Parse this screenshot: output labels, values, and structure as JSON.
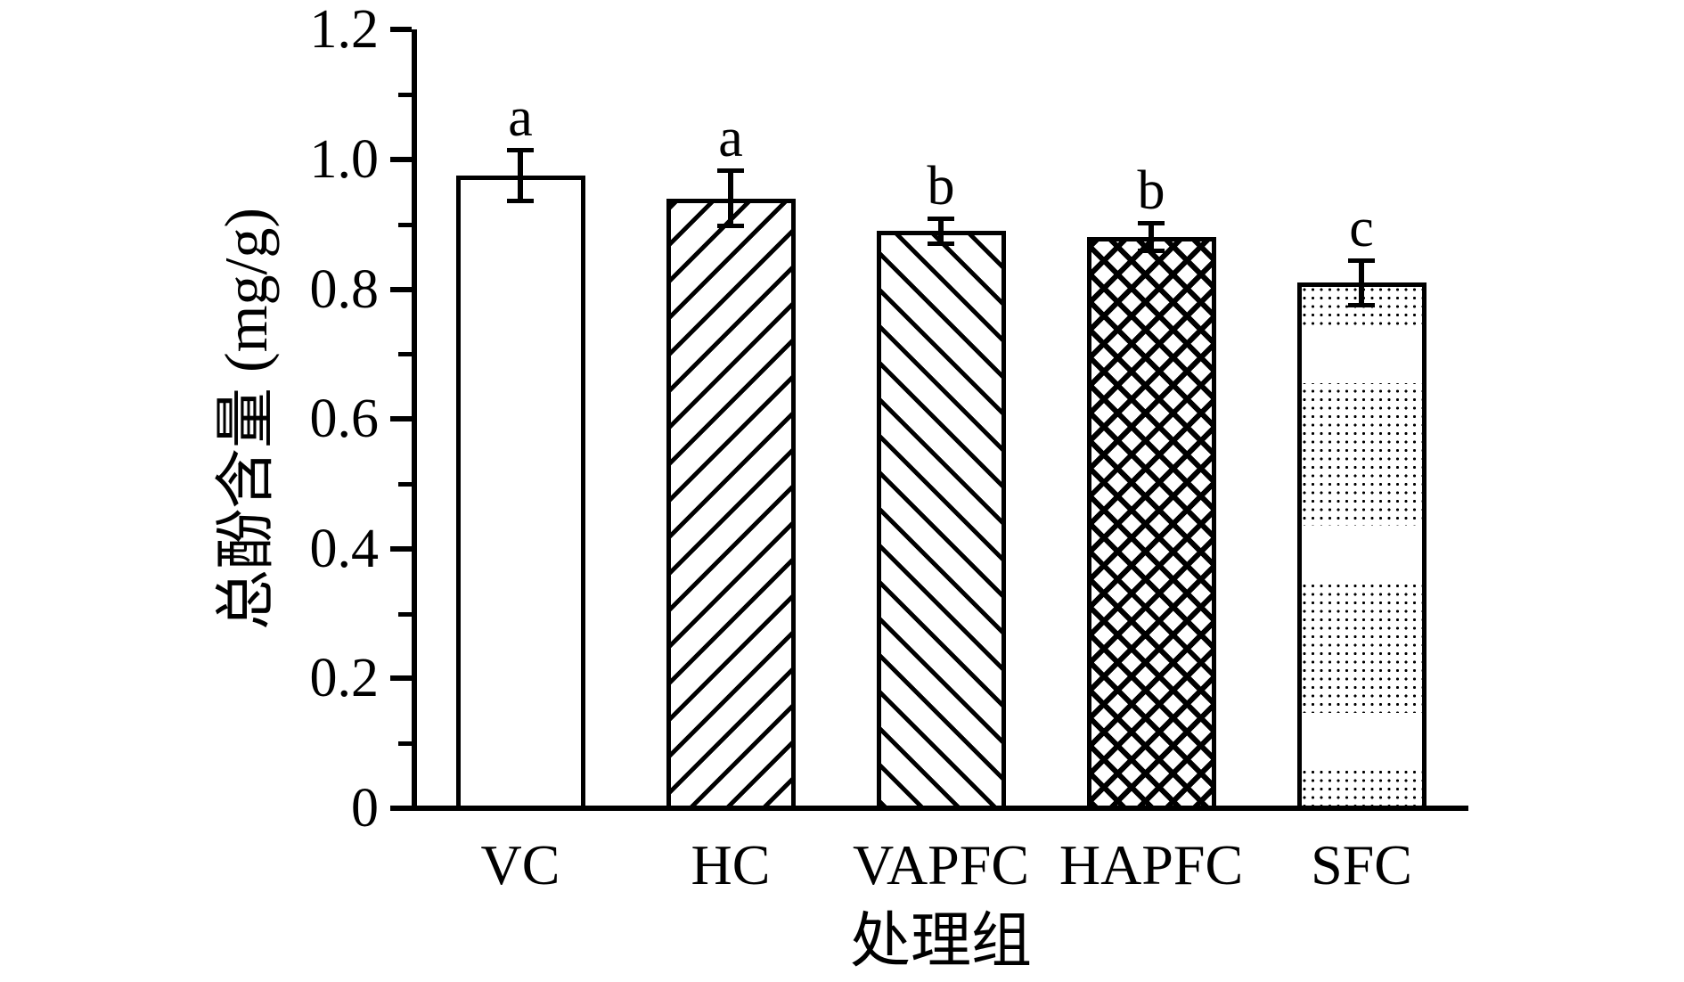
{
  "figure": {
    "background_color": "#ffffff",
    "ink_color": "#000000"
  },
  "chart_data": {
    "type": "bar",
    "title": "",
    "xlabel": "处理组",
    "ylabel": "总酚含量 (mg/g)",
    "categories": [
      "VC",
      "HC",
      "VAPFC",
      "HAPFC",
      "SFC"
    ],
    "values": [
      0.975,
      0.94,
      0.89,
      0.88,
      0.81
    ],
    "errors": [
      0.04,
      0.043,
      0.02,
      0.022,
      0.035
    ],
    "sig_letters": [
      "a",
      "a",
      "b",
      "b",
      "c"
    ],
    "bar_patterns": [
      "open",
      "hatch-forward",
      "hatch-backward",
      "crosshatch",
      "dots"
    ],
    "bar_fill": "#ffffff",
    "bar_edge": "#000000",
    "ylim": [
      0,
      1.2
    ],
    "ytick_values": [
      0,
      0.2,
      0.4,
      0.6,
      0.8,
      1.0,
      1.2
    ],
    "ytick_labels": [
      "0",
      "0.2",
      "0.4",
      "0.6",
      "0.8",
      "1.0",
      "1.2"
    ],
    "yminor_tick_values": [
      0.1,
      0.3,
      0.5,
      0.7,
      0.9,
      1.1
    ],
    "grid": false,
    "legend": "none",
    "spines": [
      "left",
      "bottom"
    ]
  }
}
